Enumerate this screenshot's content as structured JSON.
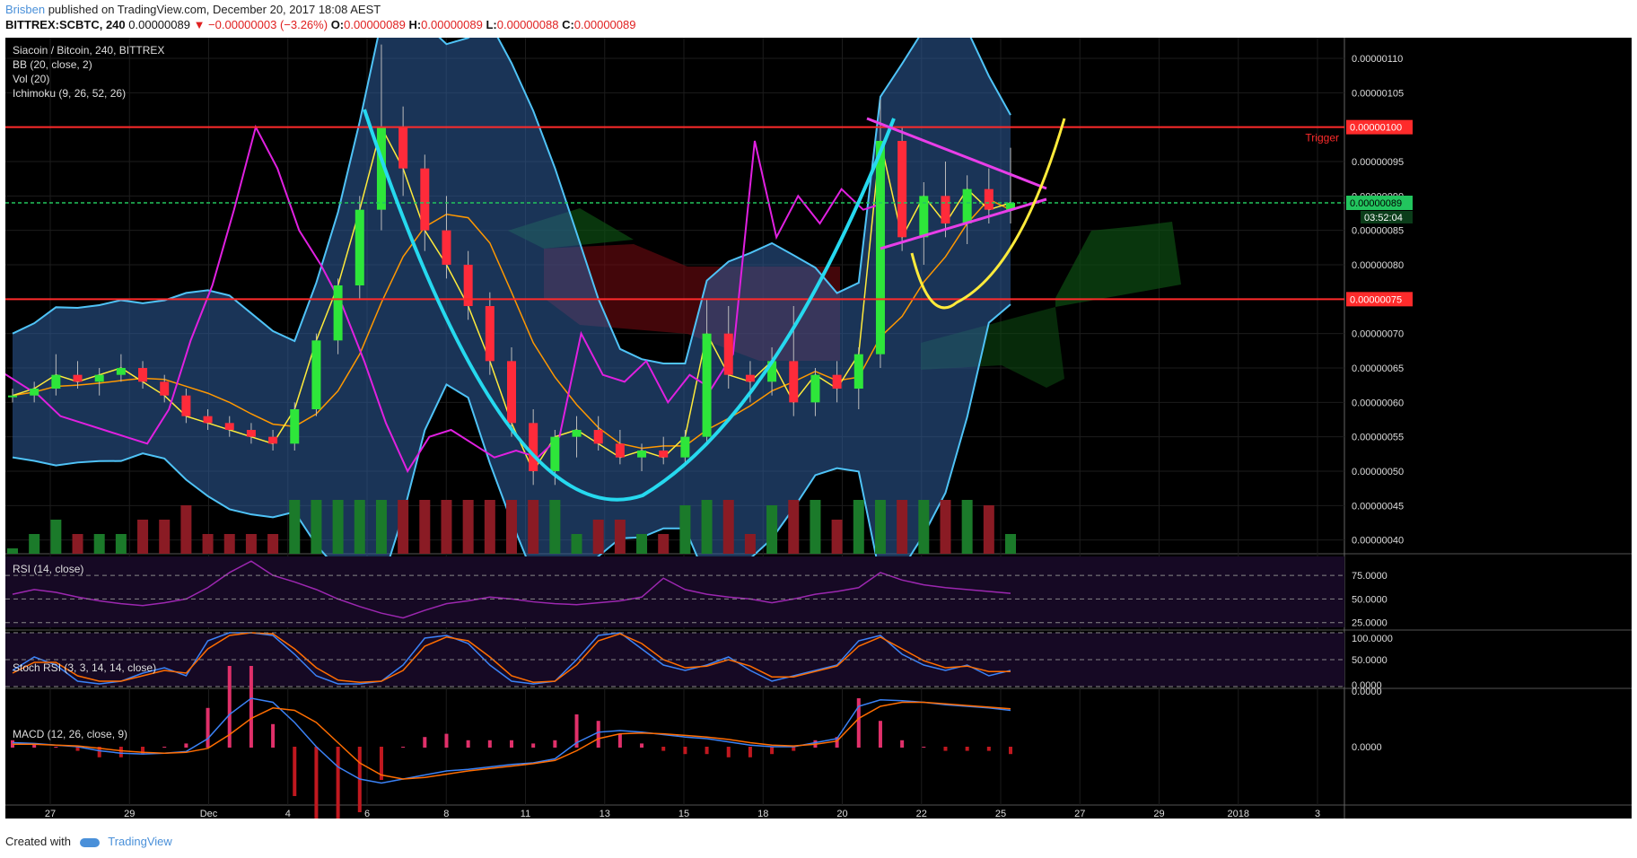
{
  "header": {
    "author": "Brisben",
    "published": "published on TradingView.com, December 20, 2017 18:08 AEST",
    "symbol": "BITTREX:SCBTC, 240",
    "last": "0.00000089",
    "change": "▼ −0.00000003 (−3.26%)",
    "open_label": "O:",
    "open": "0.00000089",
    "high_label": "H:",
    "high": "0.00000089",
    "low_label": "L:",
    "low": "0.00000088",
    "close_label": "C:",
    "close": "0.00000089"
  },
  "legend": {
    "title": "Siacoin / Bitcoin, 240, BITTREX",
    "bb": "BB (20, close, 2)",
    "vol": "Vol (20)",
    "ichimoku": "Ichimoku (9, 26, 52, 26)"
  },
  "footer": {
    "created": "Created with",
    "brand": "TradingView"
  },
  "colors": {
    "background": "#000000",
    "bb_band": "#4fc3f7",
    "bb_fill": "#2f5f9f",
    "cup": "#26d9ef",
    "pennant": "#e83ee8",
    "handle": "#ffeb3b",
    "trigger": "#ff2b2b",
    "current": "#22c55e",
    "lagging": "#e020e0"
  },
  "chart_data": [
    {
      "type": "line",
      "name": "price",
      "title": "Siacoin / Bitcoin, 240, BITTREX",
      "ylim": [
        3.8e-07,
        1.13e-06
      ],
      "y_ticks": [
        "0.00000110",
        "0.00000105",
        "0.00000100",
        "0.00000095",
        "0.00000090",
        "0.00000085",
        "0.00000080",
        "0.00000075",
        "0.00000070",
        "0.00000065",
        "0.00000060",
        "0.00000055",
        "0.00000050",
        "0.00000045",
        "0.00000040"
      ],
      "x_ticks": [
        "27",
        "29",
        "Dec",
        "4",
        "6",
        "8",
        "11",
        "13",
        "15",
        "18",
        "20",
        "22",
        "25",
        "27",
        "29",
        "2018",
        "3"
      ],
      "candles": [
        [
          6.1e-07,
          6.2e-07,
          6e-07,
          6.1e-07
        ],
        [
          6.1e-07,
          6.3e-07,
          6e-07,
          6.2e-07
        ],
        [
          6.2e-07,
          6.7e-07,
          6.1e-07,
          6.4e-07
        ],
        [
          6.4e-07,
          6.6e-07,
          6.2e-07,
          6.3e-07
        ],
        [
          6.3e-07,
          6.5e-07,
          6.1e-07,
          6.4e-07
        ],
        [
          6.4e-07,
          6.7e-07,
          6.3e-07,
          6.5e-07
        ],
        [
          6.5e-07,
          6.6e-07,
          6.2e-07,
          6.3e-07
        ],
        [
          6.3e-07,
          6.4e-07,
          6e-07,
          6.1e-07
        ],
        [
          6.1e-07,
          6.2e-07,
          5.7e-07,
          5.8e-07
        ],
        [
          5.8e-07,
          5.9e-07,
          5.6e-07,
          5.7e-07
        ],
        [
          5.7e-07,
          5.8e-07,
          5.5e-07,
          5.6e-07
        ],
        [
          5.6e-07,
          5.7e-07,
          5.4e-07,
          5.5e-07
        ],
        [
          5.5e-07,
          5.6e-07,
          5.3e-07,
          5.4e-07
        ],
        [
          5.4e-07,
          6e-07,
          5.3e-07,
          5.9e-07
        ],
        [
          5.9e-07,
          7e-07,
          5.8e-07,
          6.9e-07
        ],
        [
          6.9e-07,
          7.8e-07,
          6.7e-07,
          7.7e-07
        ],
        [
          7.7e-07,
          9e-07,
          7.5e-07,
          8.8e-07
        ],
        [
          8.8e-07,
          1.12e-06,
          8.5e-07,
          1e-06
        ],
        [
          1e-06,
          1.03e-06,
          9e-07,
          9.4e-07
        ],
        [
          9.4e-07,
          9.6e-07,
          8.2e-07,
          8.5e-07
        ],
        [
          8.5e-07,
          9e-07,
          7.8e-07,
          8e-07
        ],
        [
          8e-07,
          8.2e-07,
          7.2e-07,
          7.4e-07
        ],
        [
          7.4e-07,
          7.6e-07,
          6.4e-07,
          6.6e-07
        ],
        [
          6.6e-07,
          6.8e-07,
          5.5e-07,
          5.7e-07
        ],
        [
          5.7e-07,
          5.9e-07,
          4.8e-07,
          5e-07
        ],
        [
          5e-07,
          5.6e-07,
          4.8e-07,
          5.5e-07
        ],
        [
          5.5e-07,
          5.8e-07,
          5.2e-07,
          5.6e-07
        ],
        [
          5.6e-07,
          5.8e-07,
          5.3e-07,
          5.4e-07
        ],
        [
          5.4e-07,
          5.6e-07,
          5.1e-07,
          5.2e-07
        ],
        [
          5.2e-07,
          5.4e-07,
          5e-07,
          5.3e-07
        ],
        [
          5.3e-07,
          5.5e-07,
          5.1e-07,
          5.2e-07
        ],
        [
          5.2e-07,
          5.6e-07,
          5.1e-07,
          5.5e-07
        ],
        [
          5.5e-07,
          7.5e-07,
          5.4e-07,
          7e-07
        ],
        [
          7e-07,
          7.4e-07,
          6.2e-07,
          6.4e-07
        ],
        [
          6.4e-07,
          6.6e-07,
          6e-07,
          6.3e-07
        ],
        [
          6.3e-07,
          6.8e-07,
          6.1e-07,
          6.6e-07
        ],
        [
          6.6e-07,
          7.4e-07,
          5.8e-07,
          6e-07
        ],
        [
          6e-07,
          6.5e-07,
          5.8e-07,
          6.4e-07
        ],
        [
          6.4e-07,
          6.6e-07,
          6e-07,
          6.2e-07
        ],
        [
          6.2e-07,
          6.8e-07,
          5.9e-07,
          6.7e-07
        ],
        [
          6.7e-07,
          1.04e-06,
          6.5e-07,
          9.8e-07
        ],
        [
          9.8e-07,
          1e-06,
          8.2e-07,
          8.4e-07
        ],
        [
          8.4e-07,
          9.2e-07,
          8e-07,
          9e-07
        ],
        [
          9e-07,
          9.5e-07,
          8.4e-07,
          8.6e-07
        ],
        [
          8.6e-07,
          9.3e-07,
          8.3e-07,
          9.1e-07
        ],
        [
          9.1e-07,
          9.4e-07,
          8.6e-07,
          8.8e-07
        ],
        [
          8.8e-07,
          9.7e-07,
          8.6e-07,
          8.9e-07
        ]
      ],
      "levels": [
        {
          "label": "Trigger",
          "value": 1e-06,
          "tag": "0.00000100"
        },
        {
          "label": "",
          "value": 7.5e-07,
          "tag": "0.00000075"
        },
        {
          "label": "",
          "value": 8.9e-07,
          "tag": "0.00000089",
          "countdown": "03:52:04"
        }
      ]
    },
    {
      "type": "line",
      "name": "RSI (14, close)",
      "ylim": [
        20,
        95
      ],
      "y_ticks": [
        "75.0000",
        "50.0000",
        "25.0000"
      ],
      "values": [
        55,
        60,
        57,
        52,
        48,
        45,
        43,
        46,
        50,
        62,
        78,
        90,
        75,
        68,
        60,
        50,
        42,
        35,
        30,
        38,
        45,
        48,
        52,
        50,
        47,
        45,
        44,
        46,
        48,
        52,
        72,
        60,
        55,
        52,
        50,
        46,
        50,
        55,
        58,
        62,
        78,
        70,
        65,
        62,
        60,
        58,
        56
      ]
    },
    {
      "type": "line",
      "name": "Stoch RSI (3, 3, 14, 14, close)",
      "ylim": [
        0,
        100
      ],
      "y_ticks": [
        "100.0000",
        "50.0000",
        "0.0000"
      ],
      "k": [
        30,
        55,
        40,
        10,
        5,
        10,
        25,
        35,
        20,
        85,
        100,
        100,
        95,
        60,
        20,
        5,
        5,
        10,
        40,
        90,
        95,
        80,
        40,
        10,
        5,
        10,
        50,
        95,
        100,
        70,
        40,
        30,
        40,
        55,
        30,
        10,
        20,
        30,
        40,
        85,
        95,
        60,
        40,
        30,
        40,
        20,
        30
      ],
      "d": [
        25,
        45,
        45,
        20,
        10,
        10,
        20,
        30,
        25,
        70,
        95,
        100,
        98,
        70,
        35,
        12,
        8,
        10,
        30,
        75,
        92,
        85,
        55,
        20,
        8,
        10,
        40,
        85,
        98,
        80,
        50,
        35,
        38,
        50,
        38,
        18,
        18,
        28,
        38,
        75,
        92,
        70,
        48,
        35,
        38,
        28,
        28
      ]
    },
    {
      "type": "bar",
      "name": "MACD (12, 26, close, 9)",
      "y_ticks": [
        "0.0000",
        "0.0000"
      ],
      "macd": [
        0.05,
        0.04,
        0.02,
        0.0,
        -0.05,
        -0.08,
        -0.09,
        -0.08,
        -0.06,
        0.1,
        0.4,
        0.6,
        0.55,
        0.3,
        0.0,
        -0.25,
        -0.4,
        -0.45,
        -0.4,
        -0.35,
        -0.3,
        -0.28,
        -0.25,
        -0.22,
        -0.2,
        -0.15,
        0.05,
        0.18,
        0.2,
        0.18,
        0.15,
        0.12,
        0.1,
        0.06,
        0.02,
        0.0,
        0.0,
        0.05,
        0.1,
        0.5,
        0.58,
        0.57,
        0.55,
        0.52,
        0.5,
        0.48,
        0.45
      ],
      "signal": [
        0.03,
        0.03,
        0.02,
        0.01,
        -0.02,
        -0.05,
        -0.07,
        -0.08,
        -0.07,
        -0.02,
        0.15,
        0.35,
        0.48,
        0.45,
        0.3,
        0.05,
        -0.2,
        -0.35,
        -0.4,
        -0.38,
        -0.34,
        -0.3,
        -0.27,
        -0.24,
        -0.21,
        -0.17,
        -0.05,
        0.1,
        0.16,
        0.17,
        0.16,
        0.14,
        0.12,
        0.09,
        0.05,
        0.02,
        0.01,
        0.03,
        0.07,
        0.35,
        0.5,
        0.55,
        0.55,
        0.53,
        0.51,
        0.49,
        0.47
      ]
    }
  ]
}
